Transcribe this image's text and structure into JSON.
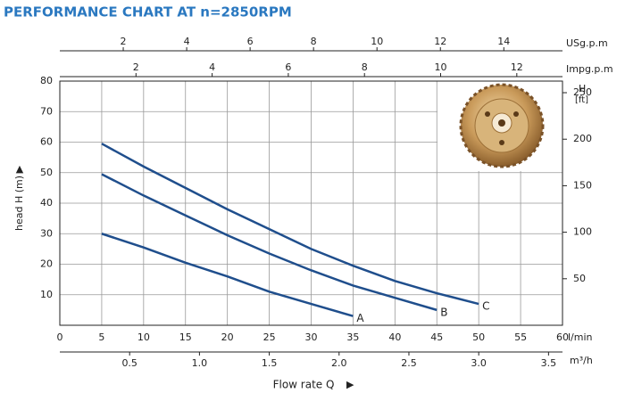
{
  "chart_data": {
    "type": "line",
    "title": "PERFORMANCE CHART AT n=2850RPM",
    "xlabel": "l/min",
    "ylabel": "head H (m)",
    "y2label": [
      "H",
      "[ft]"
    ],
    "bottom_label": "Flow rate Q",
    "xlim": [
      0,
      60
    ],
    "xticks": [
      0,
      5,
      10,
      15,
      20,
      25,
      30,
      35,
      40,
      45,
      50,
      55,
      60
    ],
    "ylim": [
      0,
      80
    ],
    "yticks": [
      10,
      20,
      30,
      40,
      50,
      60,
      70,
      80
    ],
    "y2lim": [
      0,
      262.47
    ],
    "y2ticks": [
      50,
      100,
      150,
      200,
      250
    ],
    "grid": true,
    "top_axes": [
      {
        "label": "USg.p.m",
        "lim": [
          0,
          15.85
        ],
        "ticks": [
          2,
          4,
          6,
          8,
          10,
          12,
          14
        ]
      },
      {
        "label": "Impg.p.m",
        "lim": [
          0,
          13.2
        ],
        "ticks": [
          2,
          4,
          6,
          8,
          10,
          12
        ]
      }
    ],
    "bottom_axis": {
      "label": "m³/h",
      "lim": [
        0,
        3.6
      ],
      "ticks": [
        0.5,
        {
          "value": 1,
          "label": "1.0"
        },
        1.5,
        {
          "value": 2,
          "label": "2.0"
        },
        2.5,
        {
          "value": 3,
          "label": "3.0"
        },
        3.5
      ]
    },
    "series": [
      {
        "name": "A",
        "color": "#1f4e8c",
        "x": [
          5,
          10,
          15,
          20,
          25,
          30,
          35
        ],
        "values": [
          30,
          25.5,
          20.5,
          16,
          11,
          7,
          3
        ]
      },
      {
        "name": "B",
        "color": "#1f4e8c",
        "x": [
          5,
          10,
          15,
          20,
          25,
          30,
          35,
          40,
          45
        ],
        "values": [
          49.5,
          42.5,
          36,
          29.5,
          23.5,
          18,
          13,
          9,
          5
        ]
      },
      {
        "name": "C",
        "color": "#1f4e8c",
        "x": [
          5,
          10,
          15,
          20,
          25,
          30,
          35,
          40,
          45,
          50
        ],
        "values": [
          59.5,
          52,
          45,
          38,
          31.5,
          25,
          19.5,
          14.5,
          10.5,
          7
        ]
      }
    ]
  }
}
